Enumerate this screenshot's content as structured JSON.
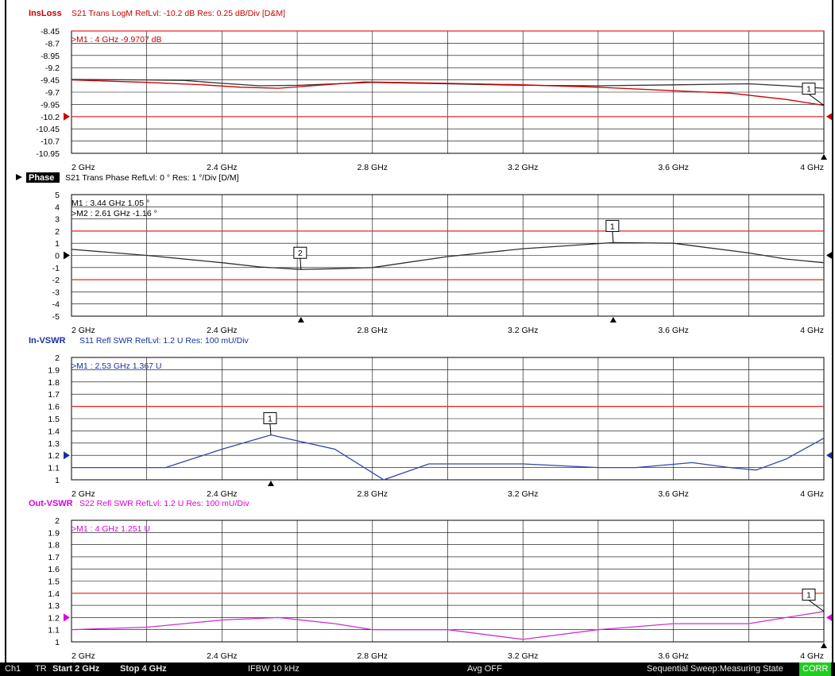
{
  "colors": {
    "insloss": "#cc0000",
    "phase_header": "#000000",
    "invswr": "#1a2ea0",
    "outvswr": "#dd00dd",
    "limit_line": "#ee2222",
    "trace_dark": "#303030",
    "grid": "#000000"
  },
  "chart_data": [
    {
      "type": "line",
      "trace_name": "InsLoss",
      "header": "S21 Trans LogM RefLvl: -10.2  dB Res: 0.25  dB/Div   [D&M]",
      "marker_readouts": [
        ">M1  :  4 GHz  -9.9707  dB"
      ],
      "x_ticks": [
        "2 GHz",
        "2.4 GHz",
        "2.8 GHz",
        "3.2 GHz",
        "3.6 GHz",
        "4 GHz"
      ],
      "y_ticks": [
        "-8.45",
        "-8.7",
        "-8.95",
        "-9.2",
        "-9.45",
        "-9.7",
        "-9.95",
        "-10.2",
        "-10.45",
        "-10.7",
        "-10.95"
      ],
      "x_range": [
        2,
        4
      ],
      "ylim": [
        -10.95,
        -8.45
      ],
      "ref_level": -10.2,
      "limit_lines": [
        -8.45,
        -10.2
      ],
      "markers": [
        {
          "label": "1",
          "x": 4.0,
          "y": -9.97,
          "series": 1
        }
      ],
      "series": [
        {
          "color": "#303030",
          "x": [
            2.0,
            2.2,
            2.3,
            2.4,
            2.5,
            2.6,
            2.8,
            3.0,
            3.2,
            3.4,
            3.6,
            3.8,
            3.9,
            4.0
          ],
          "y": [
            -9.44,
            -9.45,
            -9.46,
            -9.52,
            -9.57,
            -9.56,
            -9.5,
            -9.53,
            -9.56,
            -9.57,
            -9.55,
            -9.53,
            -9.57,
            -9.62
          ]
        },
        {
          "color": "#cc0000",
          "x": [
            2.0,
            2.2,
            2.35,
            2.45,
            2.55,
            2.62,
            2.78,
            3.0,
            3.2,
            3.4,
            3.6,
            3.75,
            3.9,
            4.0
          ],
          "y": [
            -9.45,
            -9.5,
            -9.55,
            -9.6,
            -9.62,
            -9.58,
            -9.49,
            -9.52,
            -9.55,
            -9.6,
            -9.67,
            -9.72,
            -9.85,
            -9.97
          ]
        }
      ]
    },
    {
      "type": "line",
      "trace_name": "Phase",
      "header": "S21 Trans Phase RefLvl: 0 ° Res: 1 °/Div   [D/M]",
      "marker_readouts": [
        " M1  :  3.44 GHz  1.05 °",
        ">M2  :  2.61 GHz  -1.16 °"
      ],
      "x_ticks": [
        "2 GHz",
        "2.4 GHz",
        "2.8 GHz",
        "3.2 GHz",
        "3.6 GHz",
        "4 GHz"
      ],
      "y_ticks": [
        "5",
        "4",
        "3",
        "2",
        "1",
        "0",
        "-1",
        "-2",
        "-3",
        "-4",
        "-5"
      ],
      "x_range": [
        2,
        4
      ],
      "ylim": [
        -5,
        5
      ],
      "ref_level": 0,
      "limit_lines": [
        2,
        -2
      ],
      "markers": [
        {
          "label": "2",
          "x": 2.61,
          "y": -1.16,
          "series": 0
        },
        {
          "label": "1",
          "x": 3.44,
          "y": 1.05,
          "series": 0
        }
      ],
      "series": [
        {
          "color": "#303030",
          "x": [
            2.0,
            2.2,
            2.4,
            2.5,
            2.61,
            2.7,
            2.8,
            3.0,
            3.2,
            3.44,
            3.6,
            3.8,
            3.9,
            4.0
          ],
          "y": [
            0.5,
            0.0,
            -0.6,
            -0.95,
            -1.16,
            -1.1,
            -1.0,
            -0.1,
            0.55,
            1.05,
            1.0,
            0.2,
            -0.3,
            -0.6
          ]
        }
      ]
    },
    {
      "type": "line",
      "trace_name": "In-VSWR",
      "header": "S11 Refl SWR RefLvl: 1.2  U Res: 100 mU/Div",
      "marker_readouts": [
        ">M1  :  2.53 GHz  1.367  U"
      ],
      "x_ticks": [
        "2 GHz",
        "2.4 GHz",
        "2.8 GHz",
        "3.2 GHz",
        "3.6 GHz",
        "4 GHz"
      ],
      "y_ticks": [
        "2",
        "1.9",
        "1.8",
        "1.7",
        "1.6",
        "1.5",
        "1.4",
        "1.3",
        "1.2",
        "1.1",
        "1"
      ],
      "x_range": [
        2,
        4
      ],
      "ylim": [
        1,
        2
      ],
      "ref_level": 1.2,
      "limit_lines": [
        1.6
      ],
      "markers": [
        {
          "label": "1",
          "x": 2.53,
          "y": 1.367,
          "series": 0
        }
      ],
      "series": [
        {
          "color": "#3344aa",
          "x": [
            2.0,
            2.25,
            2.4,
            2.53,
            2.7,
            2.83,
            2.95,
            3.2,
            3.4,
            3.5,
            3.65,
            3.75,
            3.82,
            3.9,
            4.0
          ],
          "y": [
            1.1,
            1.1,
            1.25,
            1.367,
            1.25,
            1.0,
            1.13,
            1.13,
            1.1,
            1.1,
            1.14,
            1.1,
            1.08,
            1.17,
            1.34
          ]
        }
      ]
    },
    {
      "type": "line",
      "trace_name": "Out-VSWR",
      "header": "S22 Refl SWR RefLvl: 1.2  U Res: 100 mU/Div",
      "marker_readouts": [
        ">M1  :  4 GHz  1.251  U"
      ],
      "x_ticks": [
        "2 GHz",
        "2.4 GHz",
        "2.8 GHz",
        "3.2 GHz",
        "3.6 GHz",
        "4 GHz"
      ],
      "y_ticks": [
        "2",
        "1.9",
        "1.8",
        "1.7",
        "1.6",
        "1.5",
        "1.4",
        "1.3",
        "1.2",
        "1.1",
        "1"
      ],
      "x_range": [
        2,
        4
      ],
      "ylim": [
        1,
        2
      ],
      "ref_level": 1.2,
      "limit_lines": [
        1.4
      ],
      "markers": [
        {
          "label": "1",
          "x": 4.0,
          "y": 1.251,
          "series": 0
        }
      ],
      "series": [
        {
          "color": "#cc33cc",
          "x": [
            2.0,
            2.2,
            2.4,
            2.55,
            2.7,
            2.8,
            3.0,
            3.2,
            3.4,
            3.6,
            3.8,
            3.9,
            4.0
          ],
          "y": [
            1.1,
            1.12,
            1.18,
            1.2,
            1.15,
            1.1,
            1.1,
            1.02,
            1.1,
            1.15,
            1.15,
            1.2,
            1.25
          ]
        }
      ]
    }
  ],
  "statusbar": {
    "channel": "Ch1",
    "mode": "TR",
    "start": "Start 2 GHz",
    "stop": "Stop 4 GHz",
    "ifbw": "IFBW 10 kHz",
    "avg": "Avg OFF",
    "sweep": "Sequential Sweep:Measuring State",
    "corr": "CORR"
  }
}
